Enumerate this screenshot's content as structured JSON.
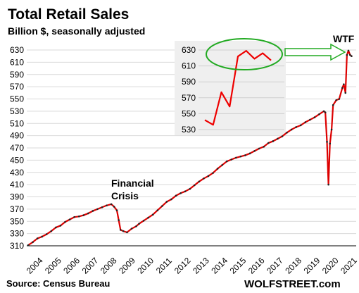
{
  "chart_data": {
    "type": "line",
    "title": "Total Retail Sales",
    "subtitle": "Billion $, seasonally adjusted",
    "ylim": [
      310,
      630
    ],
    "y_ticks": [
      310,
      330,
      350,
      370,
      390,
      410,
      430,
      450,
      470,
      490,
      510,
      530,
      550,
      570,
      590,
      610,
      630
    ],
    "x_ticks": [
      "2004",
      "2005",
      "2006",
      "2007",
      "2008",
      "2009",
      "2010",
      "2011",
      "2012",
      "2013",
      "2014",
      "2015",
      "2016",
      "2017",
      "2018",
      "2019",
      "2020",
      "2021"
    ],
    "grid": true,
    "series": [
      {
        "color": "#dd0000",
        "x": [
          2004.0,
          2004.25,
          2004.5,
          2004.75,
          2005.0,
          2005.25,
          2005.5,
          2005.75,
          2006.0,
          2006.25,
          2006.5,
          2006.75,
          2007.0,
          2007.25,
          2007.5,
          2007.75,
          2008.0,
          2008.25,
          2008.5,
          2008.65,
          2008.8,
          2008.9,
          2009.0,
          2009.15,
          2009.35,
          2009.6,
          2009.85,
          2010.0,
          2010.25,
          2010.5,
          2010.75,
          2011.0,
          2011.25,
          2011.5,
          2011.75,
          2012.0,
          2012.25,
          2012.5,
          2012.75,
          2013.0,
          2013.25,
          2013.5,
          2013.75,
          2014.0,
          2014.25,
          2014.5,
          2014.75,
          2015.0,
          2015.25,
          2015.5,
          2015.75,
          2016.0,
          2016.25,
          2016.5,
          2016.75,
          2017.0,
          2017.25,
          2017.5,
          2017.75,
          2018.0,
          2018.25,
          2018.5,
          2018.75,
          2019.0,
          2019.25,
          2019.5,
          2019.75,
          2020.0,
          2020.08,
          2020.17,
          2020.25,
          2020.33,
          2020.42,
          2020.5,
          2020.67,
          2020.83,
          2021.0,
          2021.08,
          2021.17,
          2021.25,
          2021.33,
          2021.42,
          2021.5
        ],
        "values": [
          311,
          316,
          322,
          325,
          329,
          334,
          340,
          343,
          349,
          353,
          357,
          358,
          360,
          363,
          367,
          370,
          373,
          376,
          378,
          374,
          368,
          352,
          336,
          334,
          332,
          338,
          342,
          346,
          351,
          356,
          361,
          368,
          375,
          382,
          386,
          392,
          396,
          399,
          403,
          409,
          415,
          420,
          424,
          429,
          436,
          442,
          448,
          451,
          454,
          456,
          458,
          461,
          465,
          469,
          472,
          478,
          481,
          485,
          489,
          495,
          500,
          504,
          507,
          512,
          516,
          520,
          525,
          530,
          528,
          480,
          410,
          477,
          500,
          540,
          548,
          550,
          568,
          574,
          560,
          622,
          629,
          622,
          620
        ]
      }
    ],
    "inset": {
      "ylim": [
        530,
        630
      ],
      "y_ticks": [
        530,
        550,
        570,
        590,
        610,
        630
      ],
      "values": [
        542,
        536,
        577,
        559,
        622,
        629,
        619,
        626,
        617
      ]
    },
    "annotations": {
      "crisis_line1": "Financial",
      "crisis_line2": "Crisis",
      "wtf": "WTF"
    },
    "source": "Source: Census Bureau",
    "brand": "WOLFSTREET.com"
  }
}
